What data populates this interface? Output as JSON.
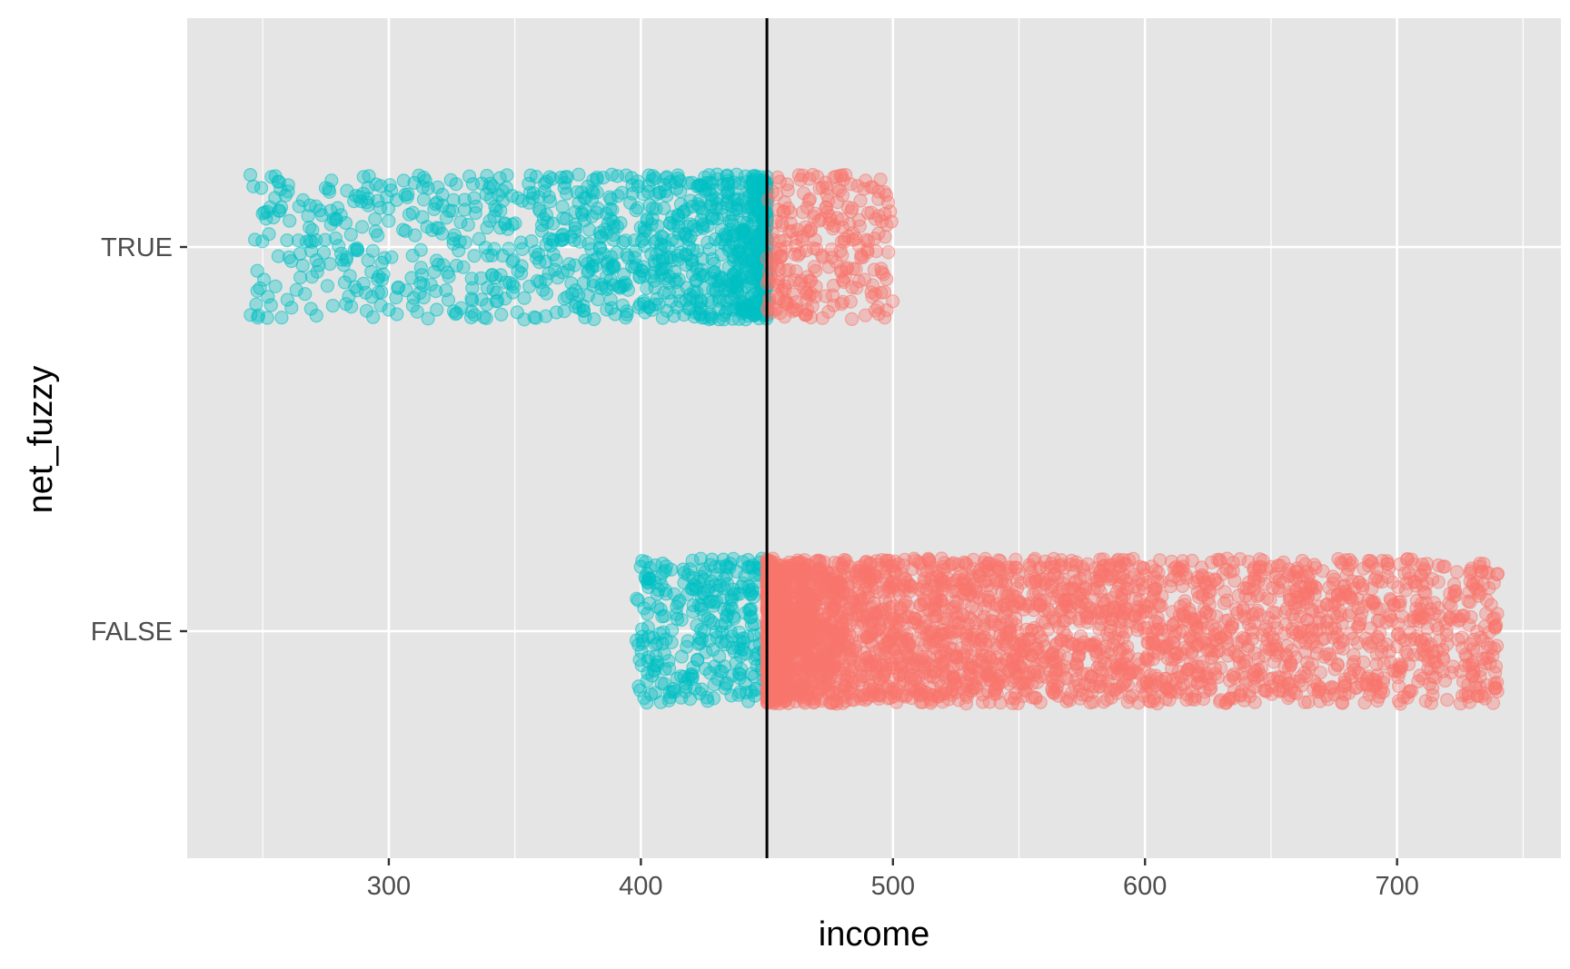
{
  "chart_data": {
    "type": "scatter",
    "subtype": "jittered-strip",
    "title": "",
    "xlabel": "income",
    "ylabel": "net_fuzzy",
    "xlim": [
      220,
      765
    ],
    "x_ticks": [
      300,
      400,
      500,
      600,
      700
    ],
    "x_minor_ticks": [
      250,
      350,
      450,
      550,
      650,
      750
    ],
    "categories": [
      "TRUE",
      "FALSE"
    ],
    "cutoff_line": {
      "x": 450,
      "color": "#000000"
    },
    "grid": true,
    "legend": "none",
    "colors": {
      "below_cutoff": "#00BFC4",
      "above_cutoff": "#F8766D",
      "panel": "#E5E5E5",
      "grid": "#FFFFFF"
    },
    "series": [
      {
        "category": "TRUE",
        "color": "#00BFC4",
        "x_range": [
          245,
          450
        ],
        "approx_count": 1100
      },
      {
        "category": "TRUE",
        "color": "#F8766D",
        "x_range": [
          450,
          500
        ],
        "approx_count": 250
      },
      {
        "category": "FALSE",
        "color": "#00BFC4",
        "x_range": [
          398,
          450
        ],
        "approx_count": 300
      },
      {
        "category": "FALSE",
        "color": "#F8766D",
        "x_range": [
          450,
          740
        ],
        "approx_count": 3200
      }
    ]
  }
}
